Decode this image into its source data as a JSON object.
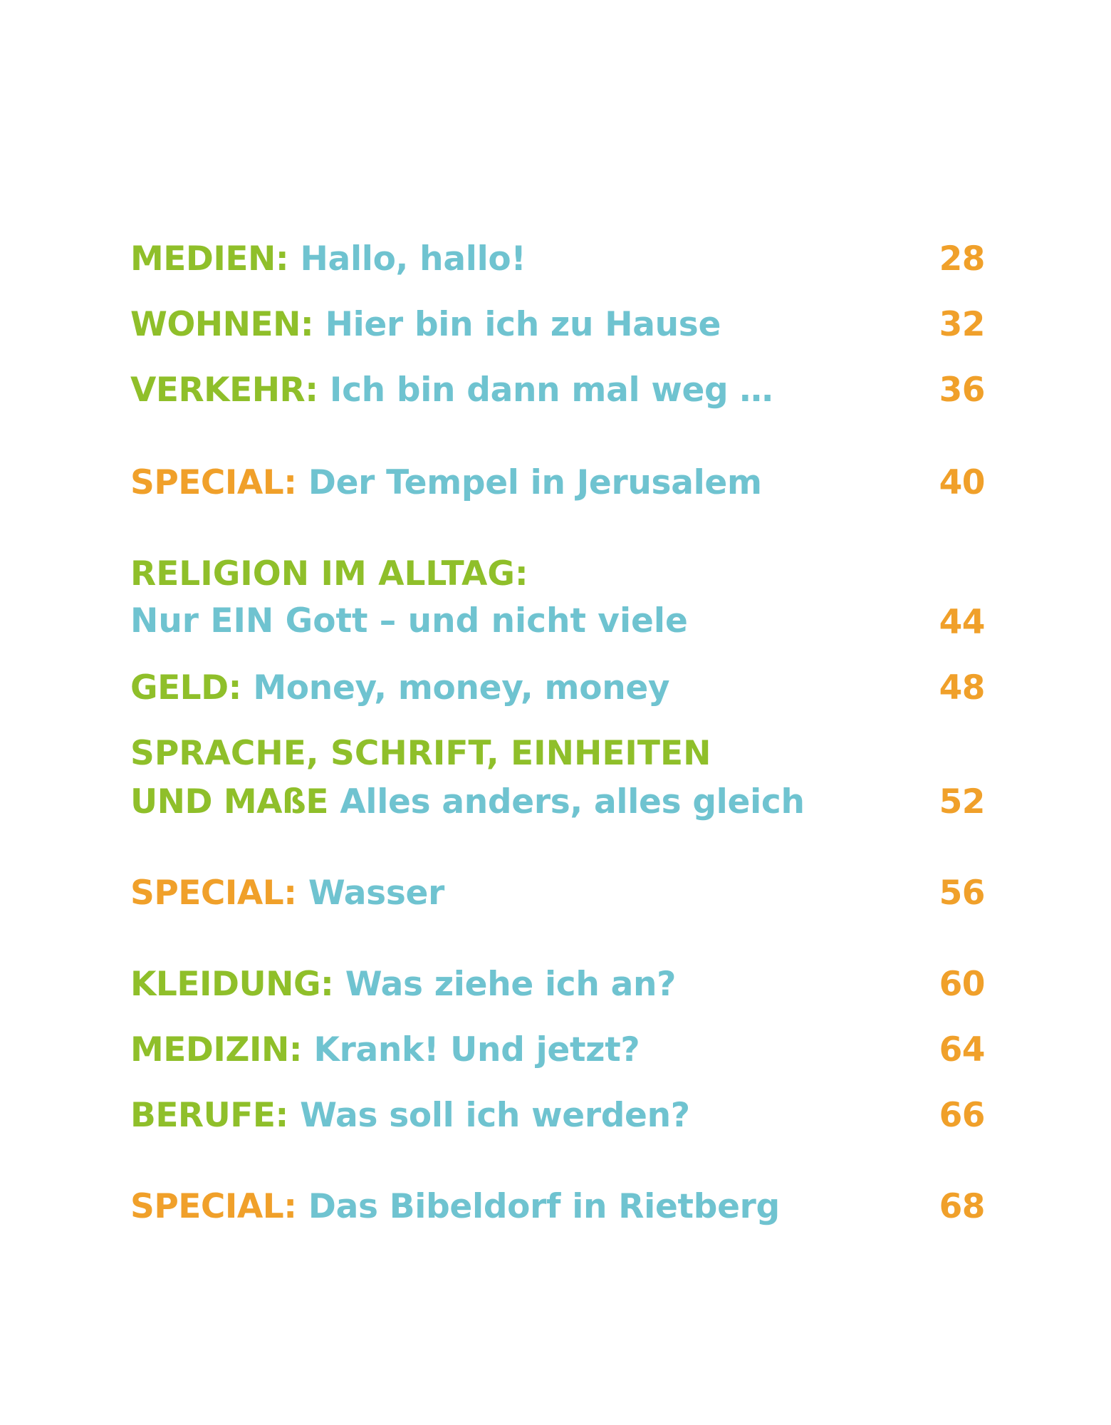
{
  "colors": {
    "category": "#8fbf2a",
    "special": "#f0a02a",
    "title": "#6fc3d0",
    "page_number": "#f0a02a"
  },
  "entries": [
    {
      "category": "MEDIEN:",
      "title": "Hallo, hallo!",
      "page": "28",
      "kind": "normal"
    },
    {
      "category": "WOHNEN:",
      "title": "Hier bin ich zu Hause",
      "page": "32",
      "kind": "normal"
    },
    {
      "category": "VERKEHR:",
      "title": "Ich bin dann mal weg …",
      "page": "36",
      "kind": "normal"
    },
    {
      "category": "SPECIAL:",
      "title": "Der Tempel in Jerusalem",
      "page": "40",
      "kind": "special"
    },
    {
      "category": "RELIGION IM ALLTAG:",
      "title": "Nur EIN Gott – und nicht viele",
      "page": "44",
      "kind": "normal"
    },
    {
      "category": "GELD:",
      "title": "Money, money, money",
      "page": "48",
      "kind": "normal"
    },
    {
      "category_line1": "SPRACHE, SCHRIFT, EINHEITEN",
      "category_line2": "UND MAßE",
      "title": "Alles anders, alles gleich",
      "page": "52",
      "kind": "normal"
    },
    {
      "category": "SPECIAL:",
      "title": "Wasser",
      "page": "56",
      "kind": "special"
    },
    {
      "category": "KLEIDUNG:",
      "title": "Was ziehe ich an?",
      "page": "60",
      "kind": "normal"
    },
    {
      "category": "MEDIZIN:",
      "title": "Krank! Und jetzt?",
      "page": "64",
      "kind": "normal"
    },
    {
      "category": "BERUFE:",
      "title": "Was soll ich werden?",
      "page": "66",
      "kind": "normal"
    },
    {
      "category": "SPECIAL:",
      "title": "Das Bibeldorf in Rietberg",
      "page": "68",
      "kind": "special"
    }
  ]
}
